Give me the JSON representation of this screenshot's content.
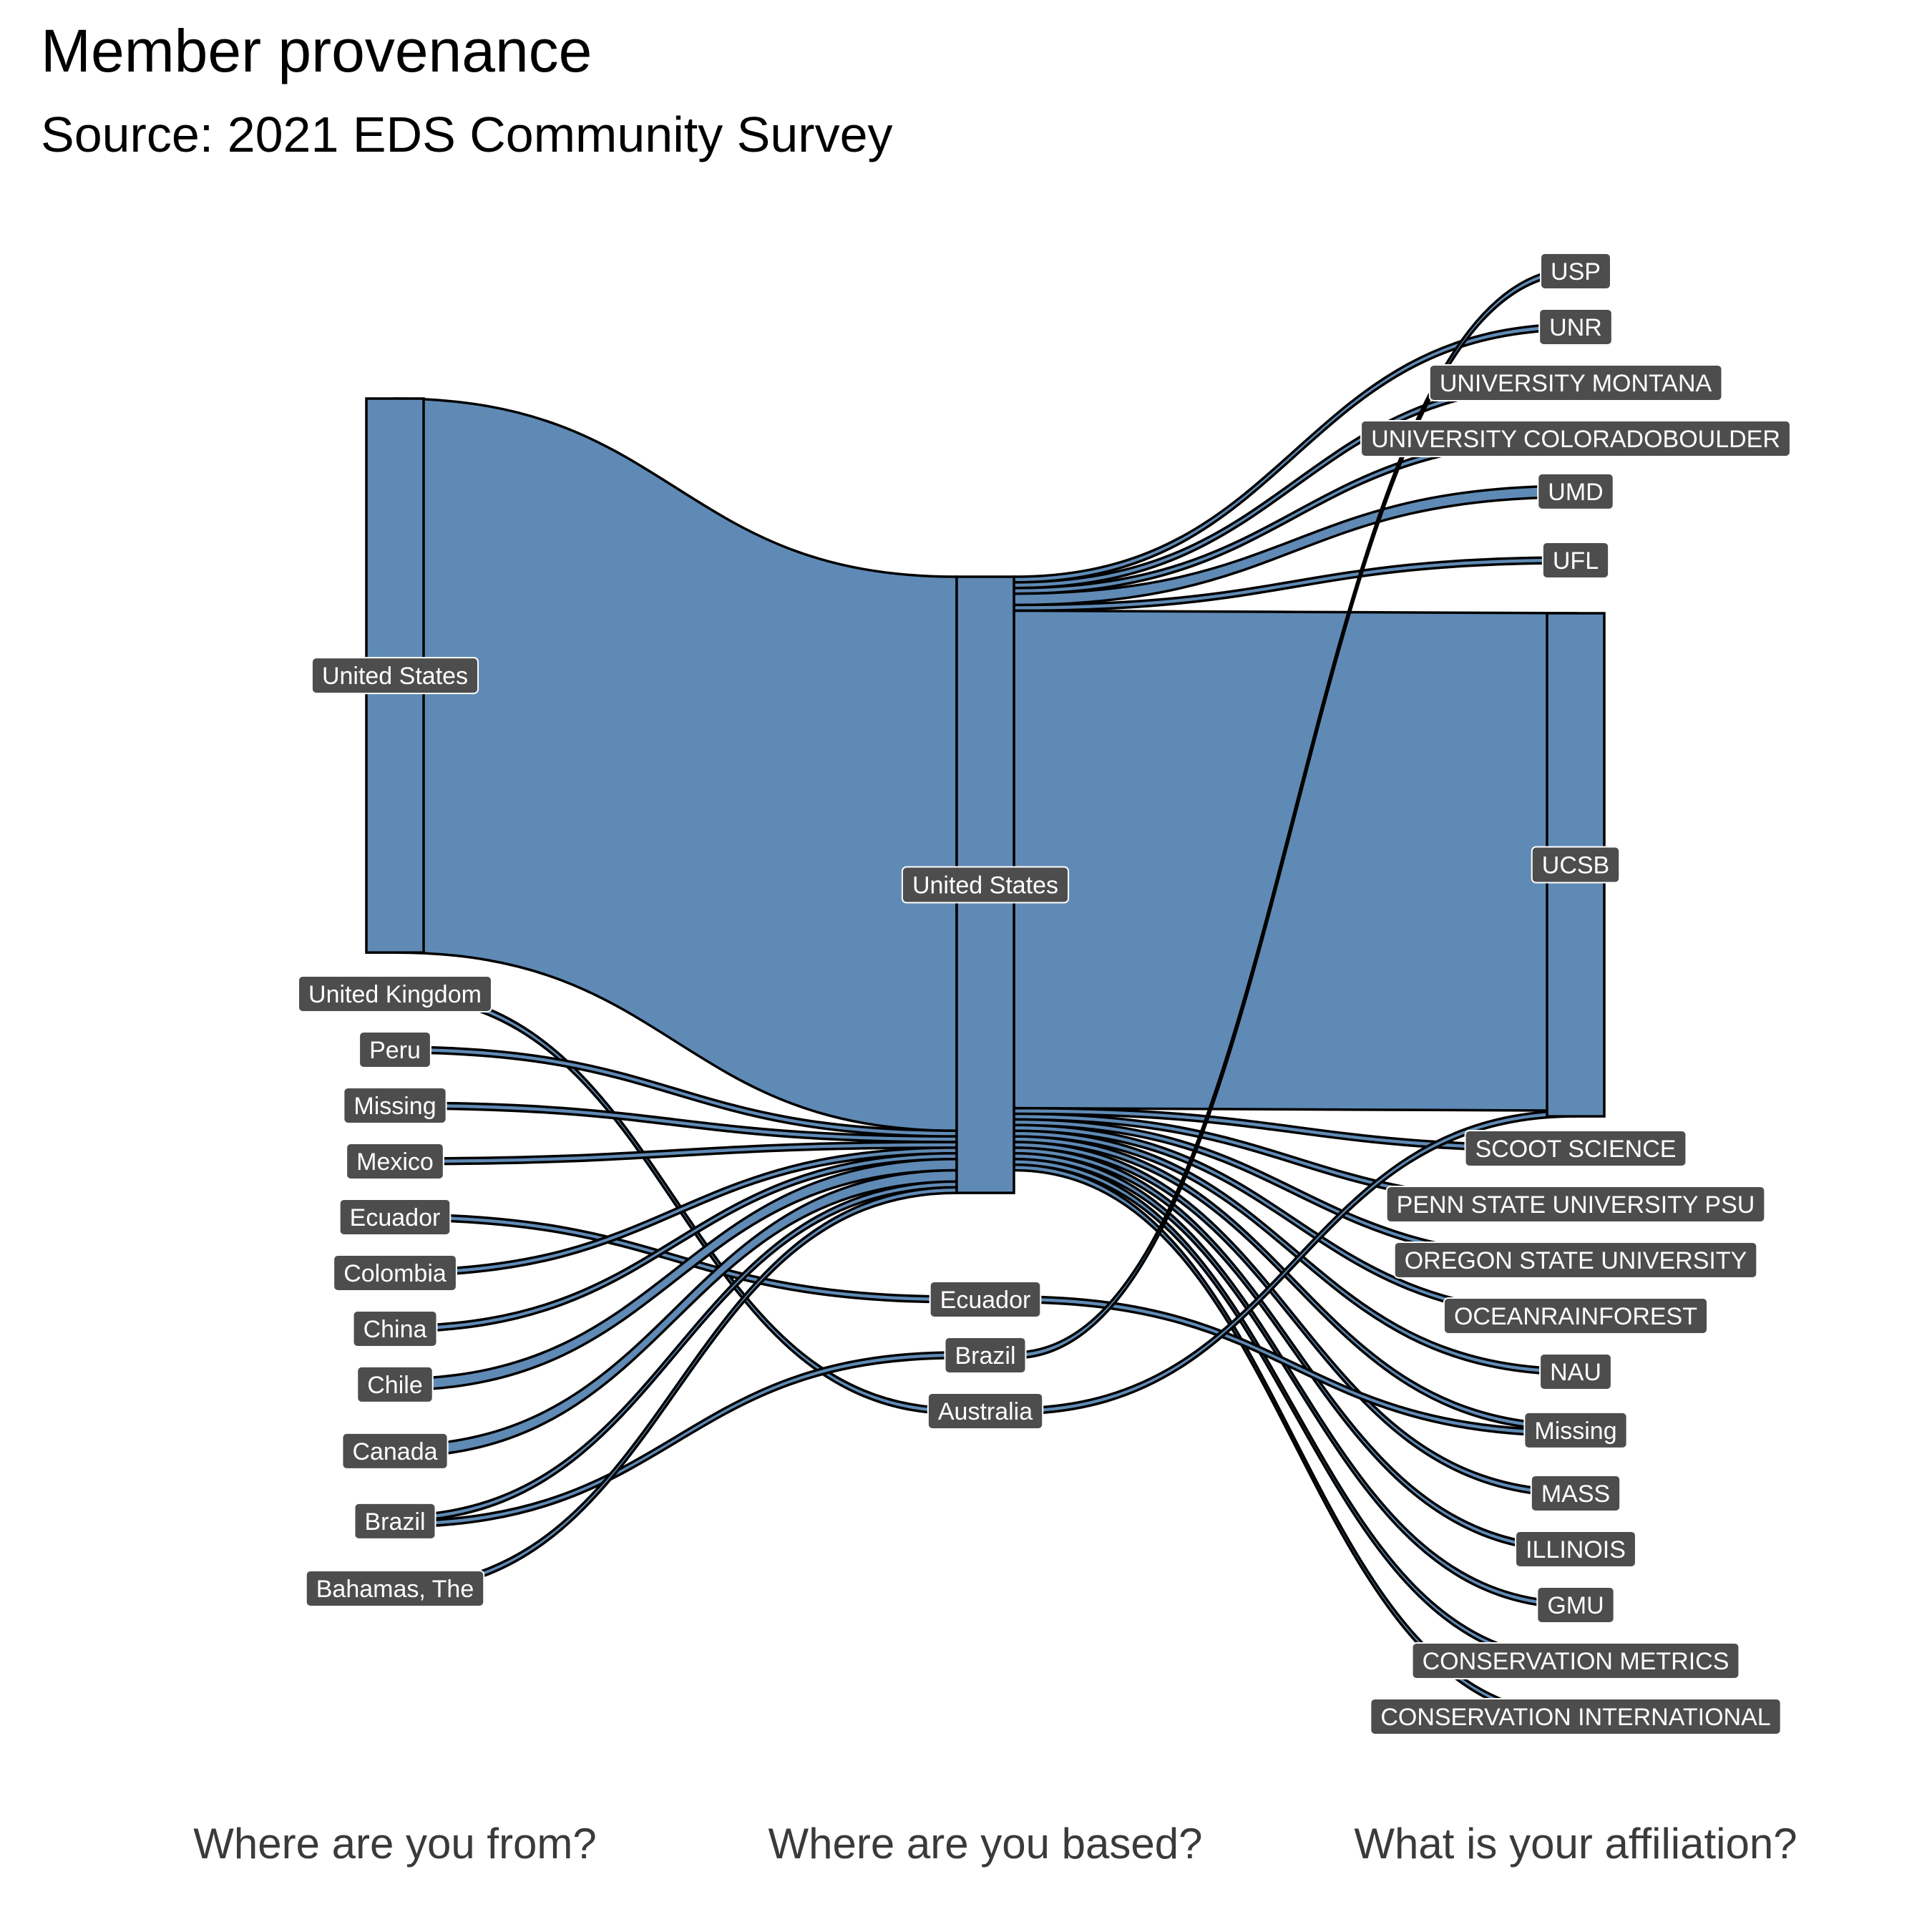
{
  "title": "Member provenance",
  "subtitle": "Source: 2021 EDS Community Survey",
  "colors": {
    "flow": "#5f8ab5",
    "stroke": "#000000",
    "label_bg": "#4d4d4d",
    "label_text": "#ffffff"
  },
  "axes": [
    "Where are you from?",
    "Where are you based?",
    "What is your affiliation?"
  ],
  "chart_data": {
    "type": "sankey",
    "stages": [
      "Where are you from?",
      "Where are you based?",
      "What is your affiliation?"
    ],
    "nodes": {
      "from": [
        "United States",
        "United Kingdom",
        "Peru",
        "Missing",
        "Mexico",
        "Ecuador",
        "Colombia",
        "China",
        "Chile",
        "Canada",
        "Brazil",
        "Bahamas, The"
      ],
      "based": [
        "United States",
        "Ecuador",
        "Brazil",
        "Australia"
      ],
      "affiliation": [
        "USP",
        "UNR",
        "UNIVERSITY MONTANA",
        "UNIVERSITY COLORADOBOULDER",
        "UMD",
        "UFL",
        "UCSB",
        "SCOOT SCIENCE",
        "PENN STATE UNIVERSITY PSU",
        "OREGON STATE UNIVERSITY",
        "OCEANRAINFOREST",
        "NAU",
        "Missing",
        "MASS",
        "ILLINOIS",
        "GMU",
        "CONSERVATION METRICS",
        "CONSERVATION INTERNATIONAL"
      ]
    },
    "links_from_to_based": [
      {
        "source": "United States",
        "target": "United States",
        "value": 98
      },
      {
        "source": "United Kingdom",
        "target": "Australia",
        "value": 1
      },
      {
        "source": "Peru",
        "target": "United States",
        "value": 1
      },
      {
        "source": "Missing",
        "target": "United States",
        "value": 1
      },
      {
        "source": "Mexico",
        "target": "United States",
        "value": 1
      },
      {
        "source": "Ecuador",
        "target": "Ecuador",
        "value": 1
      },
      {
        "source": "Colombia",
        "target": "United States",
        "value": 1
      },
      {
        "source": "China",
        "target": "United States",
        "value": 1
      },
      {
        "source": "Chile",
        "target": "United States",
        "value": 2
      },
      {
        "source": "Canada",
        "target": "United States",
        "value": 2
      },
      {
        "source": "Brazil",
        "target": "United States",
        "value": 1
      },
      {
        "source": "Brazil",
        "target": "Brazil",
        "value": 1
      },
      {
        "source": "Bahamas, The",
        "target": "United States",
        "value": 1
      }
    ],
    "links_based_to_affiliation": [
      {
        "source": "United States",
        "target": "UNR",
        "value": 1
      },
      {
        "source": "United States",
        "target": "UNIVERSITY MONTANA",
        "value": 1
      },
      {
        "source": "United States",
        "target": "UNIVERSITY COLORADOBOULDER",
        "value": 1
      },
      {
        "source": "United States",
        "target": "UMD",
        "value": 2
      },
      {
        "source": "United States",
        "target": "UFL",
        "value": 1
      },
      {
        "source": "United States",
        "target": "UCSB",
        "value": 88
      },
      {
        "source": "United States",
        "target": "SCOOT SCIENCE",
        "value": 1
      },
      {
        "source": "United States",
        "target": "PENN STATE UNIVERSITY PSU",
        "value": 1
      },
      {
        "source": "United States",
        "target": "OREGON STATE UNIVERSITY",
        "value": 1
      },
      {
        "source": "United States",
        "target": "OCEANRAINFOREST",
        "value": 1
      },
      {
        "source": "United States",
        "target": "NAU",
        "value": 1
      },
      {
        "source": "United States",
        "target": "Missing",
        "value": 1
      },
      {
        "source": "United States",
        "target": "MASS",
        "value": 1
      },
      {
        "source": "United States",
        "target": "ILLINOIS",
        "value": 1
      },
      {
        "source": "United States",
        "target": "GMU",
        "value": 1
      },
      {
        "source": "United States",
        "target": "CONSERVATION METRICS",
        "value": 1
      },
      {
        "source": "United States",
        "target": "CONSERVATION INTERNATIONAL",
        "value": 1
      },
      {
        "source": "Ecuador",
        "target": "Missing",
        "value": 1
      },
      {
        "source": "Brazil",
        "target": "USP",
        "value": 1
      },
      {
        "source": "Australia",
        "target": "UCSB",
        "value": 1
      }
    ]
  }
}
